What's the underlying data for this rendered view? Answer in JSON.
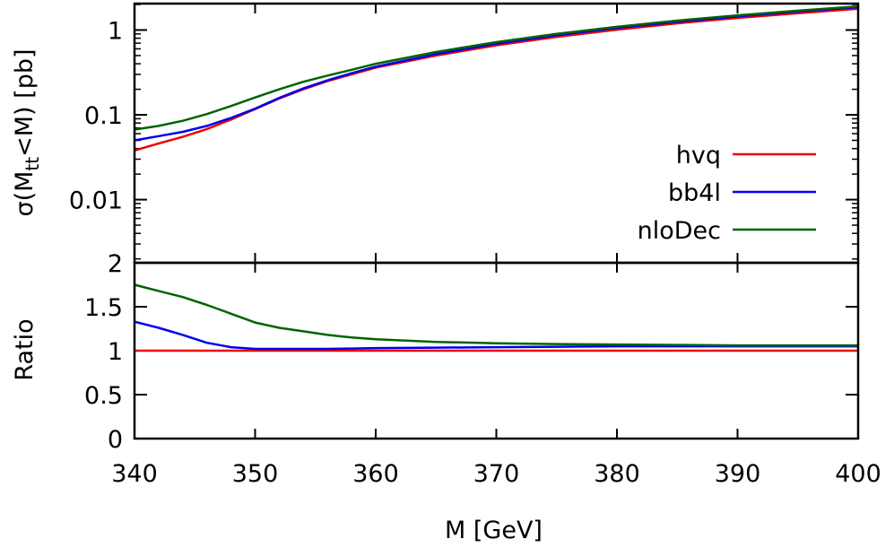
{
  "chart_data": [
    {
      "type": "line",
      "panel": "top",
      "yscale": "log",
      "ylabel_main": "σ(M",
      "ylabel_sub": "tt",
      "ylabel_rest": "<M) [pb]",
      "xlim": [
        340,
        400
      ],
      "ylim": [
        0.0018,
        2.05
      ],
      "yticks": [
        {
          "value": 1,
          "label": "1"
        },
        {
          "value": 0.1,
          "label": "0.1"
        },
        {
          "value": 0.01,
          "label": "0.01"
        }
      ],
      "x": [
        340,
        342,
        344,
        346,
        348,
        350,
        352,
        354,
        356,
        358,
        360,
        365,
        370,
        375,
        380,
        385,
        390,
        395,
        400
      ],
      "series": [
        {
          "name": "hvq",
          "color": "#ee0000",
          "values": [
            0.038,
            0.046,
            0.055,
            0.068,
            0.088,
            0.117,
            0.156,
            0.2,
            0.25,
            0.3,
            0.36,
            0.5,
            0.66,
            0.83,
            1.01,
            1.2,
            1.39,
            1.58,
            1.78
          ]
        },
        {
          "name": "bb4l",
          "color": "#0000ee",
          "values": [
            0.05,
            0.056,
            0.063,
            0.074,
            0.092,
            0.118,
            0.158,
            0.205,
            0.255,
            0.31,
            0.37,
            0.52,
            0.69,
            0.87,
            1.06,
            1.25,
            1.45,
            1.65,
            1.86
          ]
        },
        {
          "name": "nloDec",
          "color": "#006400",
          "values": [
            0.067,
            0.074,
            0.085,
            0.102,
            0.127,
            0.16,
            0.2,
            0.245,
            0.29,
            0.34,
            0.4,
            0.55,
            0.72,
            0.9,
            1.09,
            1.29,
            1.49,
            1.69,
            1.9
          ]
        }
      ],
      "legend_position": "right"
    },
    {
      "type": "line",
      "panel": "bottom",
      "ylabel": "Ratio",
      "xlabel": "M [GeV]",
      "xlim": [
        340,
        400
      ],
      "ylim": [
        0,
        2
      ],
      "xticks": [
        340,
        350,
        360,
        370,
        380,
        390,
        400
      ],
      "yticks": [
        {
          "value": 0,
          "label": "0"
        },
        {
          "value": 0.5,
          "label": "0.5"
        },
        {
          "value": 1,
          "label": "1"
        },
        {
          "value": 1.5,
          "label": "1.5"
        },
        {
          "value": 2,
          "label": "2"
        }
      ],
      "x": [
        340,
        342,
        344,
        346,
        348,
        350,
        352,
        354,
        356,
        358,
        360,
        365,
        370,
        375,
        380,
        385,
        390,
        395,
        400
      ],
      "series": [
        {
          "name": "hvq",
          "color": "#ee0000",
          "values": [
            1.0,
            1.0,
            1.0,
            1.0,
            1.0,
            1.0,
            1.0,
            1.0,
            1.0,
            1.0,
            1.0,
            1.0,
            1.0,
            1.0,
            1.0,
            1.0,
            1.0,
            1.0,
            1.0
          ]
        },
        {
          "name": "bb4l",
          "color": "#0000ee",
          "values": [
            1.33,
            1.26,
            1.18,
            1.09,
            1.04,
            1.02,
            1.02,
            1.02,
            1.02,
            1.025,
            1.03,
            1.035,
            1.04,
            1.045,
            1.05,
            1.05,
            1.05,
            1.05,
            1.05
          ]
        },
        {
          "name": "nloDec",
          "color": "#006400",
          "values": [
            1.75,
            1.68,
            1.61,
            1.52,
            1.42,
            1.32,
            1.26,
            1.22,
            1.18,
            1.15,
            1.13,
            1.1,
            1.085,
            1.075,
            1.07,
            1.065,
            1.06,
            1.06,
            1.06
          ]
        }
      ]
    }
  ]
}
